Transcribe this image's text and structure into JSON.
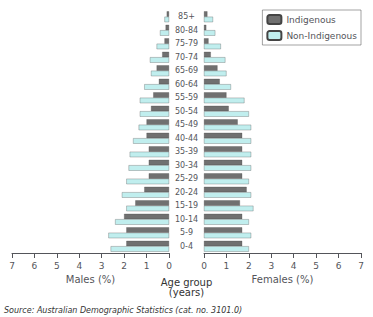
{
  "chart_data": [
    {
      "type": "bar",
      "orientation": "horizontal",
      "xlabel": "Males (%)",
      "ylabel": "Age group\n(years)",
      "categories": [
        "0-4",
        "5-9",
        "10-14",
        "15-19",
        "20-24",
        "25-29",
        "30-34",
        "35-39",
        "40-44",
        "45-49",
        "50-54",
        "55-59",
        "60-64",
        "65-69",
        "70-74",
        "75-79",
        "80-84",
        "85+"
      ],
      "series": [
        {
          "name": "Indigenous",
          "color": "#707070",
          "values": [
            1.9,
            1.9,
            2.0,
            1.5,
            1.1,
            0.9,
            0.9,
            0.9,
            1.0,
            1.0,
            0.8,
            0.7,
            0.45,
            0.55,
            0.3,
            0.2,
            0.15,
            0.1
          ]
        },
        {
          "name": "Non-Indigenous",
          "color": "#c0eeee",
          "values": [
            2.6,
            2.7,
            2.4,
            1.9,
            2.1,
            1.9,
            1.8,
            1.75,
            1.6,
            1.35,
            1.3,
            1.3,
            1.1,
            0.8,
            0.85,
            0.55,
            0.4,
            0.2
          ]
        }
      ],
      "xlim": [
        0,
        7
      ],
      "xticks": [
        0,
        1,
        2,
        3,
        4,
        5,
        6,
        7
      ],
      "grid": false,
      "annotations": [
        "Source: Australian Demographic Statistics (cat. no. 3101.0)"
      ]
    },
    {
      "type": "bar",
      "orientation": "horizontal",
      "xlabel": "Females (%)",
      "categories": [
        "0-4",
        "5-9",
        "10-14",
        "15-19",
        "20-24",
        "25-29",
        "30-34",
        "35-39",
        "40-44",
        "45-49",
        "50-54",
        "55-59",
        "60-64",
        "65-69",
        "70-74",
        "75-79",
        "80-84",
        "85+"
      ],
      "series": [
        {
          "name": "Indigenous",
          "color": "#707070",
          "values": [
            1.7,
            1.7,
            1.7,
            1.6,
            1.9,
            1.7,
            1.7,
            1.7,
            1.7,
            1.5,
            1.1,
            1.0,
            0.7,
            0.6,
            0.3,
            0.2,
            0.1,
            0.15
          ]
        },
        {
          "name": "Non-Indigenous",
          "color": "#c0eeee",
          "values": [
            2.0,
            2.1,
            2.0,
            2.2,
            2.1,
            2.0,
            2.1,
            2.1,
            2.1,
            2.1,
            2.0,
            1.8,
            1.2,
            1.0,
            0.95,
            0.75,
            0.5,
            0.4
          ]
        }
      ],
      "xlim": [
        0,
        7
      ],
      "xticks": [
        0,
        1,
        2,
        3,
        4,
        5,
        6,
        7
      ],
      "grid": false,
      "legend": "upper right"
    }
  ]
}
